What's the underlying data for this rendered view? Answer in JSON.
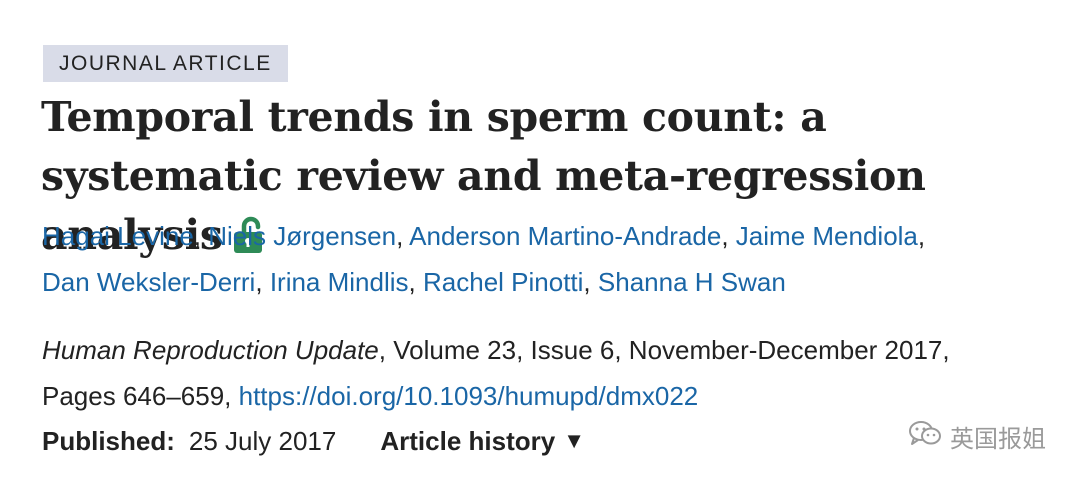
{
  "badge": "JOURNAL ARTICLE",
  "title": "Temporal trends in sperm count: a systematic review and meta-regression analysis",
  "lock_icon": "open-lock-icon",
  "lock_color": "#2e8b57",
  "link_color": "#1a66a6",
  "authors": [
    "Hagai Levine",
    "Niels Jørgensen",
    "Anderson Martino-Andrade",
    "Jaime Mendiola",
    "Dan Weksler-Derri",
    "Irina Mindlis",
    "Rachel Pinotti",
    "Shanna H Swan"
  ],
  "author_separator": ",",
  "citation": {
    "journal": "Human Reproduction Update",
    "details": ", Volume 23, Issue 6, November-December 2017,",
    "pages": "Pages 646–659, ",
    "doi": "https://doi.org/10.1093/humupd/dmx022"
  },
  "published": {
    "label": "Published:",
    "date": "25 July 2017"
  },
  "article_history": {
    "label": "Article history",
    "caret": "▼"
  },
  "watermark": {
    "icon": "wechat-icon",
    "text": "英国报姐"
  }
}
